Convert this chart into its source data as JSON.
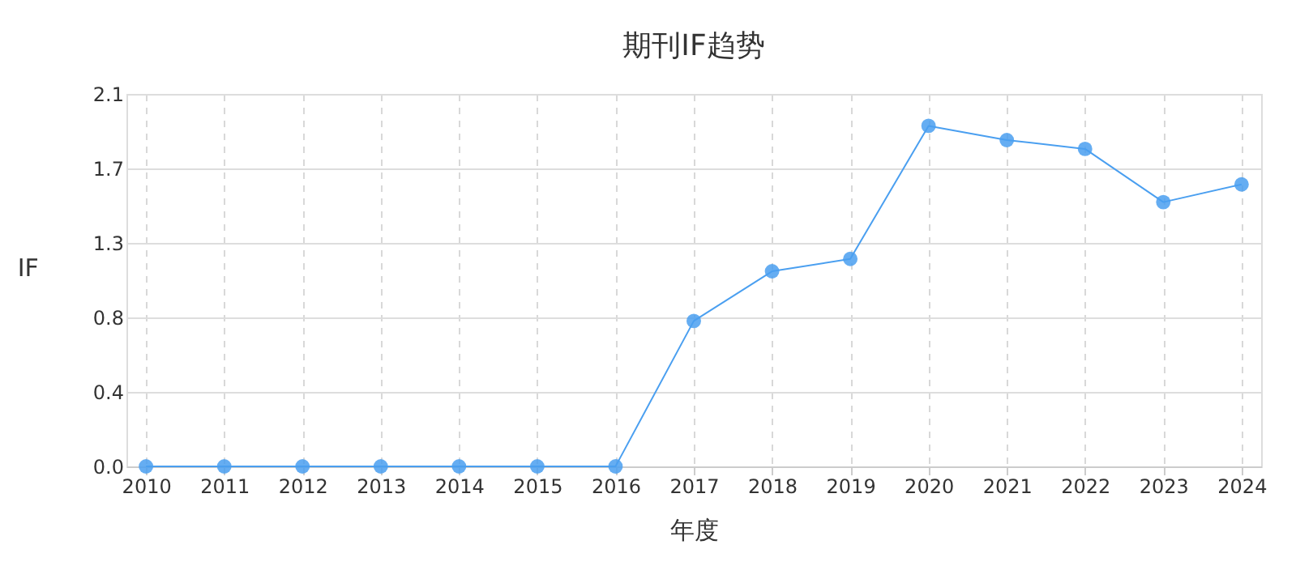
{
  "chart_data": {
    "type": "line",
    "title": "期刊IF趋势",
    "xlabel": "年度",
    "ylabel": "IF",
    "categories": [
      "2010",
      "2011",
      "2012",
      "2013",
      "2014",
      "2015",
      "2016",
      "2017",
      "2018",
      "2019",
      "2020",
      "2021",
      "2022",
      "2023",
      "2024"
    ],
    "series": [
      {
        "color": "#4a9ff0",
        "values": [
          0,
          0,
          0,
          0,
          0,
          0,
          0,
          0.82,
          1.1,
          1.17,
          1.92,
          1.84,
          1.79,
          1.49,
          1.59
        ]
      }
    ],
    "ylim": [
      0,
      2.1
    ],
    "yticks": [
      {
        "value": 0,
        "label": "0.0"
      },
      {
        "value": 0.42,
        "label": "0.4"
      },
      {
        "value": 0.84,
        "label": "0.8"
      },
      {
        "value": 1.26,
        "label": "1.3"
      },
      {
        "value": 1.68,
        "label": "1.7"
      },
      {
        "value": 2.1,
        "label": "2.1"
      }
    ],
    "grid": true,
    "marker": "circle",
    "line_style": "solid"
  }
}
